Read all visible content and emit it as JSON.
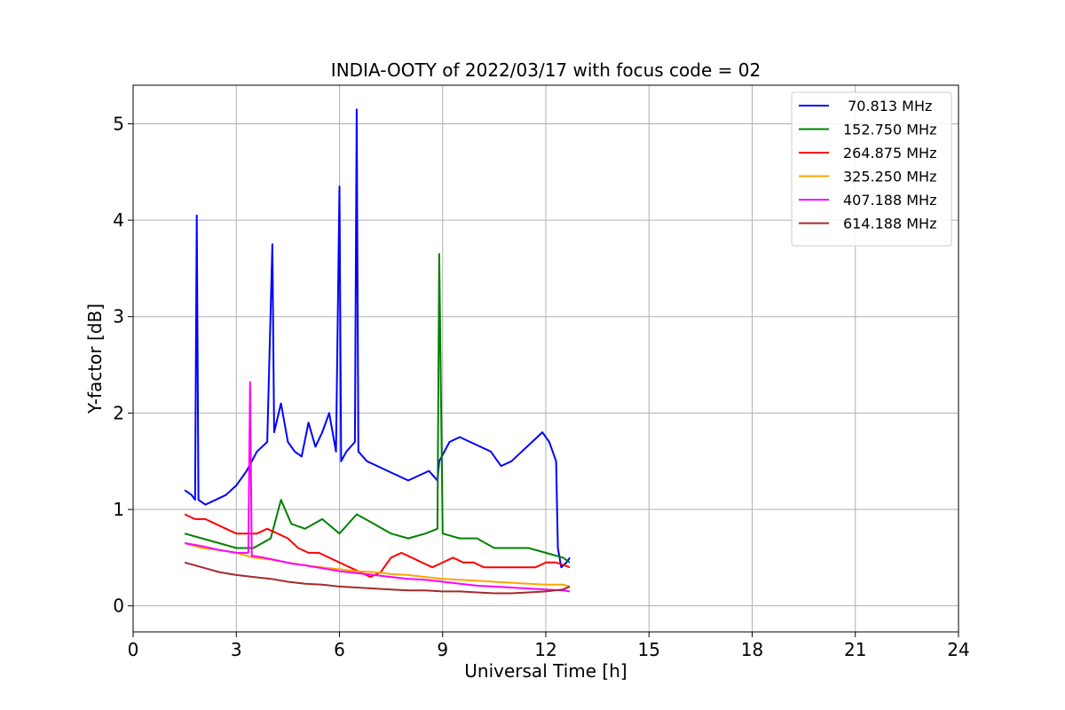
{
  "chart_data": {
    "type": "line",
    "title": "INDIA-OOTY of 2022/03/17 with focus code = 02",
    "xlabel": "Universal Time [h]",
    "ylabel": "Y-factor [dB]",
    "xlim": [
      0,
      24
    ],
    "ylim": [
      -0.27,
      5.4
    ],
    "xticks": [
      0,
      3,
      6,
      9,
      12,
      15,
      18,
      21,
      24
    ],
    "yticks": [
      0,
      1,
      2,
      3,
      4,
      5
    ],
    "xtick_labels": [
      "0",
      "3",
      "6",
      "9",
      "12",
      "15",
      "18",
      "21",
      "24"
    ],
    "ytick_labels": [
      "0",
      "1",
      "2",
      "3",
      "4",
      "5"
    ],
    "grid": true,
    "legend_position": "top-right",
    "series": [
      {
        "name": " 70.813 MHz",
        "color": "#0000ff",
        "x": [
          1.5,
          1.7,
          1.8,
          1.85,
          1.9,
          2.1,
          2.4,
          2.7,
          3.0,
          3.3,
          3.6,
          3.9,
          4.05,
          4.1,
          4.3,
          4.5,
          4.7,
          4.9,
          5.1,
          5.3,
          5.5,
          5.7,
          5.9,
          6.0,
          6.05,
          6.2,
          6.45,
          6.5,
          6.55,
          6.8,
          7.1,
          7.4,
          7.7,
          8.0,
          8.3,
          8.6,
          8.85,
          8.9,
          9.2,
          9.5,
          9.8,
          10.1,
          10.4,
          10.7,
          11.0,
          11.3,
          11.6,
          11.9,
          12.1,
          12.3,
          12.35,
          12.45,
          12.6,
          12.7
        ],
        "y": [
          1.2,
          1.15,
          1.1,
          4.05,
          1.1,
          1.05,
          1.1,
          1.15,
          1.25,
          1.4,
          1.6,
          1.7,
          3.75,
          1.8,
          2.1,
          1.7,
          1.6,
          1.55,
          1.9,
          1.65,
          1.8,
          2.0,
          1.6,
          4.35,
          1.5,
          1.6,
          1.7,
          5.15,
          1.6,
          1.5,
          1.45,
          1.4,
          1.35,
          1.3,
          1.35,
          1.4,
          1.3,
          1.5,
          1.7,
          1.75,
          1.7,
          1.65,
          1.6,
          1.45,
          1.5,
          1.6,
          1.7,
          1.8,
          1.7,
          1.5,
          0.6,
          0.4,
          0.45,
          0.5
        ]
      },
      {
        "name": "152.750 MHz",
        "color": "#008000",
        "x": [
          1.5,
          2.0,
          2.5,
          3.0,
          3.5,
          4.0,
          4.3,
          4.6,
          5.0,
          5.5,
          6.0,
          6.5,
          7.0,
          7.5,
          8.0,
          8.5,
          8.85,
          8.9,
          9.0,
          9.5,
          10.0,
          10.5,
          11.0,
          11.5,
          12.0,
          12.5,
          12.7
        ],
        "y": [
          0.75,
          0.7,
          0.65,
          0.6,
          0.6,
          0.7,
          1.1,
          0.85,
          0.8,
          0.9,
          0.75,
          0.95,
          0.85,
          0.75,
          0.7,
          0.75,
          0.8,
          3.65,
          0.75,
          0.7,
          0.7,
          0.6,
          0.6,
          0.6,
          0.55,
          0.5,
          0.45
        ]
      },
      {
        "name": "264.875 MHz",
        "color": "#ff0000",
        "x": [
          1.5,
          1.8,
          2.1,
          2.4,
          2.7,
          3.0,
          3.3,
          3.6,
          3.9,
          4.2,
          4.5,
          4.8,
          5.1,
          5.4,
          5.7,
          6.0,
          6.3,
          6.6,
          6.9,
          7.2,
          7.5,
          7.8,
          8.1,
          8.4,
          8.7,
          9.0,
          9.3,
          9.6,
          9.9,
          10.2,
          10.5,
          10.8,
          11.1,
          11.4,
          11.7,
          12.0,
          12.3,
          12.7
        ],
        "y": [
          0.95,
          0.9,
          0.9,
          0.85,
          0.8,
          0.75,
          0.75,
          0.75,
          0.8,
          0.75,
          0.7,
          0.6,
          0.55,
          0.55,
          0.5,
          0.45,
          0.4,
          0.35,
          0.3,
          0.35,
          0.5,
          0.55,
          0.5,
          0.45,
          0.4,
          0.45,
          0.5,
          0.45,
          0.45,
          0.4,
          0.4,
          0.4,
          0.4,
          0.4,
          0.4,
          0.45,
          0.45,
          0.4
        ]
      },
      {
        "name": "325.250 MHz",
        "color": "#ffa500",
        "x": [
          1.5,
          2.0,
          2.5,
          3.0,
          3.5,
          4.0,
          4.5,
          5.0,
          5.5,
          6.0,
          6.5,
          7.0,
          7.5,
          8.0,
          8.5,
          9.0,
          9.5,
          10.0,
          10.5,
          11.0,
          11.5,
          12.0,
          12.5,
          12.7
        ],
        "y": [
          0.65,
          0.6,
          0.58,
          0.55,
          0.5,
          0.48,
          0.45,
          0.42,
          0.4,
          0.38,
          0.36,
          0.35,
          0.33,
          0.32,
          0.3,
          0.28,
          0.27,
          0.26,
          0.25,
          0.24,
          0.23,
          0.22,
          0.22,
          0.2
        ]
      },
      {
        "name": "407.188 MHz",
        "color": "#ff00ff",
        "x": [
          1.5,
          2.0,
          2.5,
          3.0,
          3.35,
          3.4,
          3.45,
          3.8,
          4.2,
          4.6,
          5.0,
          5.5,
          6.0,
          6.5,
          7.0,
          7.5,
          8.0,
          8.5,
          9.0,
          9.5,
          10.0,
          10.5,
          11.0,
          11.5,
          12.0,
          12.5,
          12.7
        ],
        "y": [
          0.65,
          0.62,
          0.58,
          0.55,
          0.55,
          2.32,
          0.52,
          0.5,
          0.47,
          0.44,
          0.42,
          0.39,
          0.36,
          0.34,
          0.32,
          0.3,
          0.28,
          0.27,
          0.25,
          0.23,
          0.21,
          0.2,
          0.19,
          0.18,
          0.17,
          0.16,
          0.15
        ]
      },
      {
        "name": "614.188 MHz",
        "color": "#a52a2a",
        "x": [
          1.5,
          2.0,
          2.5,
          3.0,
          3.5,
          4.0,
          4.5,
          5.0,
          5.5,
          6.0,
          6.5,
          7.0,
          7.5,
          8.0,
          8.5,
          9.0,
          9.5,
          10.0,
          10.5,
          11.0,
          11.5,
          12.0,
          12.5,
          12.7
        ],
        "y": [
          0.45,
          0.4,
          0.35,
          0.32,
          0.3,
          0.28,
          0.25,
          0.23,
          0.22,
          0.2,
          0.19,
          0.18,
          0.17,
          0.16,
          0.16,
          0.15,
          0.15,
          0.14,
          0.13,
          0.13,
          0.14,
          0.15,
          0.17,
          0.2
        ]
      }
    ]
  }
}
